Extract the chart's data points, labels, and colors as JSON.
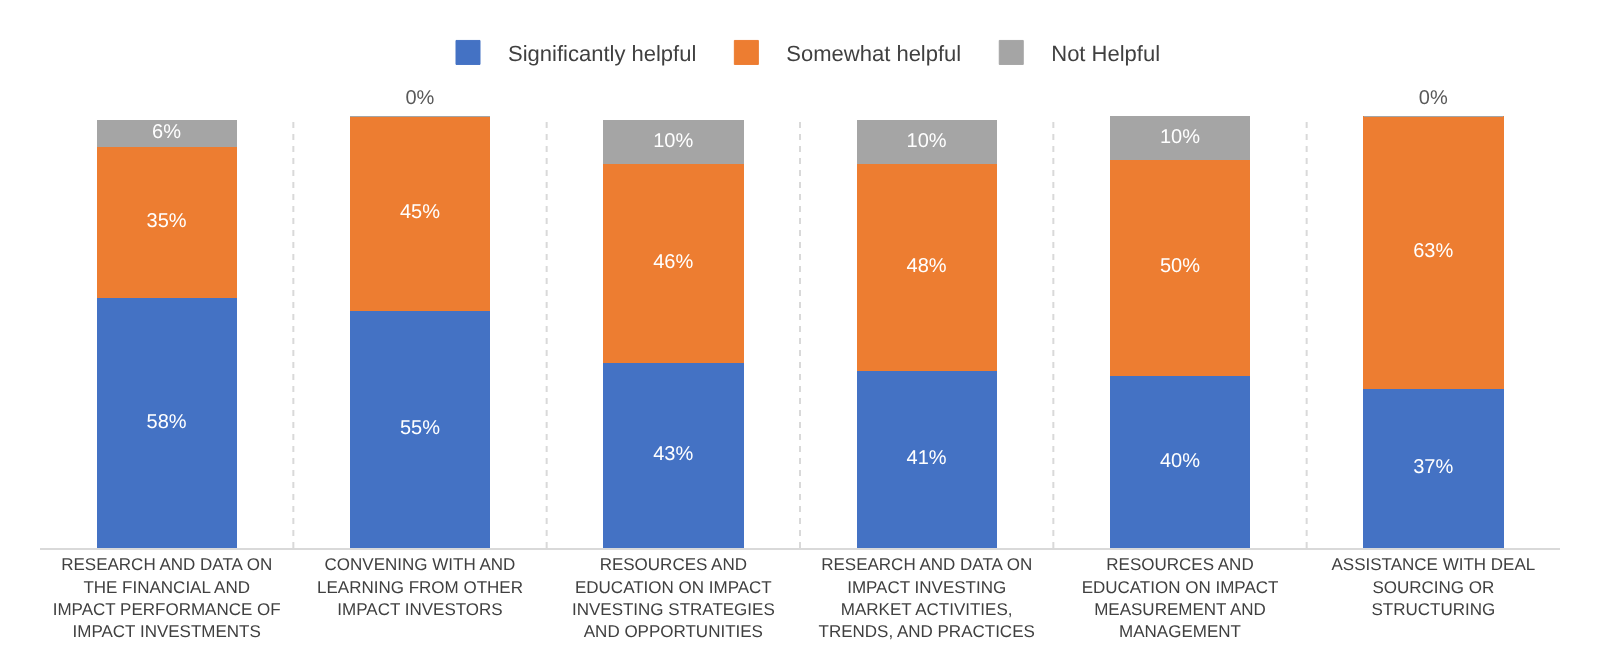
{
  "chart_data": {
    "type": "bar",
    "stacked": true,
    "legend": "top",
    "grid": "x",
    "tick_labels": "x",
    "categories": [
      "RESEARCH AND DATA ON THE FINANCIAL AND IMPACT PERFORMANCE OF IMPACT INVESTMENTS",
      "CONVENING WITH AND LEARNING FROM OTHER IMPACT INVESTORS",
      "RESOURCES AND EDUCATION ON IMPACT INVESTING STRATEGIES AND OPPORTUNITIES",
      "RESEARCH AND DATA ON IMPACT INVESTING MARKET ACTIVITIES, TRENDS, AND PRACTICES",
      "RESOURCES AND EDUCATION ON IMPACT MEASUREMENT AND MANAGEMENT",
      "ASSISTANCE WITH DEAL SOURCING OR STRUCTURING"
    ],
    "series": [
      {
        "name": "Significantly helpful",
        "color": "#4472c4",
        "values": [
          58,
          55,
          43,
          41,
          40,
          37
        ],
        "value_labels": [
          "58%",
          "55%",
          "43%",
          "41%",
          "40%",
          "37%"
        ]
      },
      {
        "name": "Somewhat helpful",
        "color": "#ed7d31",
        "values": [
          35,
          45,
          46,
          48,
          50,
          63
        ],
        "value_labels": [
          "35%",
          "45%",
          "46%",
          "48%",
          "50%",
          "63%"
        ]
      },
      {
        "name": "Not Helpful",
        "color": "#a5a5a5",
        "values": [
          6,
          0,
          10,
          10,
          10,
          0
        ],
        "value_labels": [
          "6%",
          "0%",
          "10%",
          "10%",
          "10%",
          "0%"
        ]
      }
    ]
  }
}
